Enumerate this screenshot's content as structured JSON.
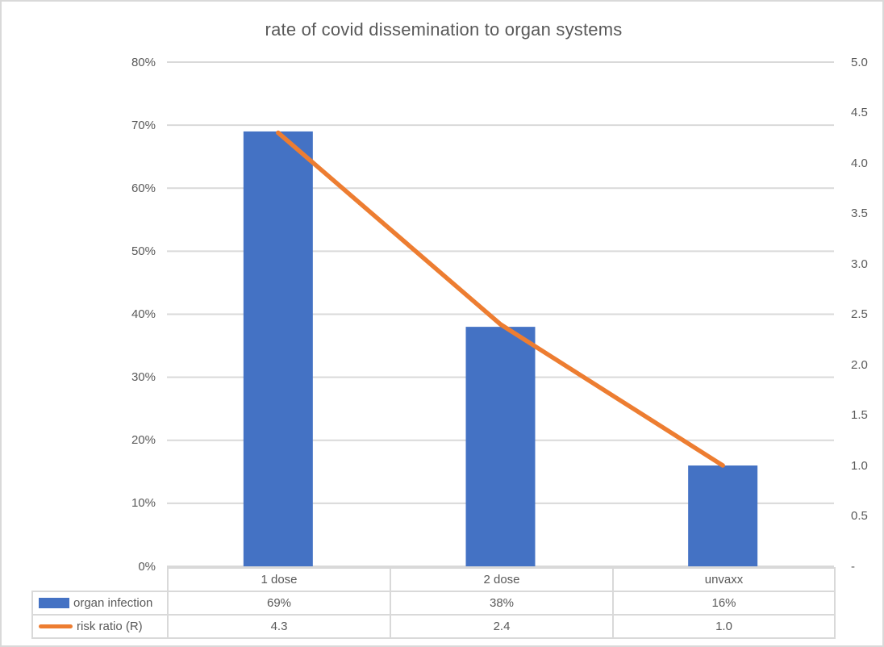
{
  "chart_data": {
    "type": "combo-bar-line",
    "title": "rate of covid dissemination to organ systems",
    "categories": [
      "1 dose",
      "2 dose",
      "unvaxx"
    ],
    "series": [
      {
        "name": "organ infection",
        "type": "bar",
        "axis": "left",
        "values": [
          0.69,
          0.38,
          0.16
        ],
        "display_values": [
          "69%",
          "38%",
          "16%"
        ],
        "color": "#4472C4"
      },
      {
        "name": "risk ratio (R)",
        "type": "line",
        "axis": "right",
        "values": [
          4.3,
          2.4,
          1.0
        ],
        "display_values": [
          "4.3",
          "2.4",
          "1.0"
        ],
        "color": "#ED7D31"
      }
    ],
    "left_axis": {
      "min": 0,
      "max": 0.8,
      "tick_labels": [
        "80%",
        "70%",
        "60%",
        "50%",
        "40%",
        "30%",
        "20%",
        "10%",
        "0%"
      ]
    },
    "right_axis": {
      "min": 0,
      "max": 5,
      "tick_labels": [
        "5.0",
        "4.5",
        "4.0",
        "3.5",
        "3.0",
        "2.5",
        "2.0",
        "1.5",
        "1.0",
        "0.5",
        "-"
      ]
    },
    "grid": true,
    "legend_position": "data-table"
  },
  "colors": {
    "grid": "#D9D9D9",
    "text": "#595959",
    "table_border": "#D9D9D9",
    "background": "#FFFFFF"
  }
}
